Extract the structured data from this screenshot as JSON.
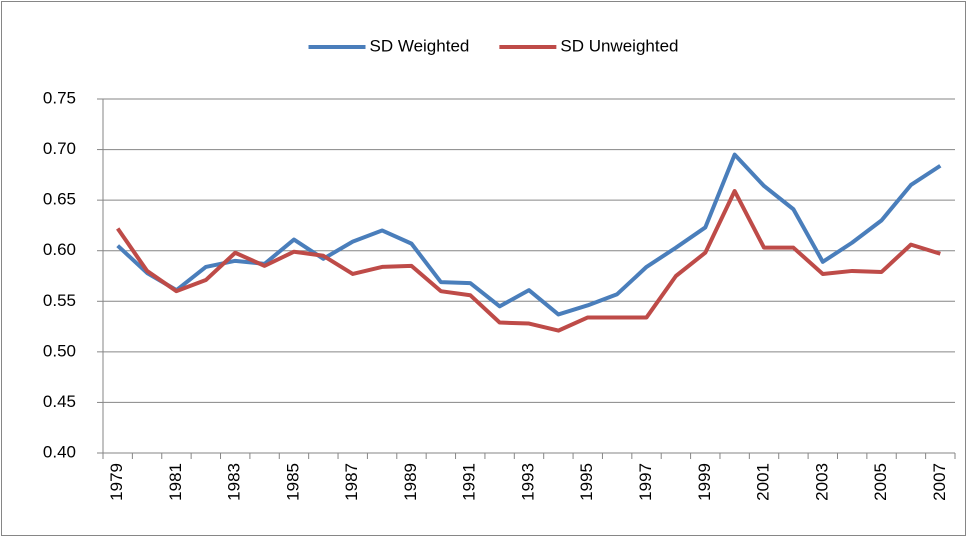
{
  "chart_data": {
    "type": "line",
    "categories": [
      "1979",
      null,
      "1981",
      null,
      "1983",
      null,
      "1985",
      null,
      "1987",
      null,
      "1989",
      null,
      "1991",
      null,
      "1993",
      null,
      "1995",
      null,
      "1997",
      null,
      "1999",
      null,
      "2001",
      null,
      "2003",
      null,
      "2005",
      null,
      "2007"
    ],
    "series": [
      {
        "name": "SD Weighted",
        "color": "#4a7ebb",
        "values": [
          0.605,
          0.578,
          0.561,
          0.584,
          0.59,
          0.587,
          0.611,
          0.592,
          0.609,
          0.62,
          0.607,
          0.569,
          0.568,
          0.545,
          0.561,
          0.537,
          0.546,
          0.557,
          0.584,
          0.603,
          0.623,
          0.695,
          0.664,
          0.641,
          0.589,
          0.608,
          0.63,
          0.665,
          0.684
        ]
      },
      {
        "name": "SD Unweighted",
        "color": "#be4b48",
        "values": [
          0.622,
          0.58,
          0.56,
          0.571,
          0.598,
          0.585,
          0.599,
          0.595,
          0.577,
          0.584,
          0.585,
          0.56,
          0.556,
          0.529,
          0.528,
          0.521,
          0.534,
          0.534,
          0.534,
          0.575,
          0.598,
          0.659,
          0.603,
          0.603,
          0.577,
          0.58,
          0.579,
          0.606,
          0.597
        ]
      }
    ],
    "ylim": [
      0.4,
      0.75
    ],
    "yticks": [
      {
        "value": 0.4,
        "label": "0.40"
      },
      0.45,
      {
        "value": 0.5,
        "label": "0.50"
      },
      0.55,
      {
        "value": 0.6,
        "label": "0.60"
      },
      0.65,
      {
        "value": 0.7,
        "label": "0.70"
      },
      0.75
    ],
    "grid": true,
    "legend": "top"
  }
}
